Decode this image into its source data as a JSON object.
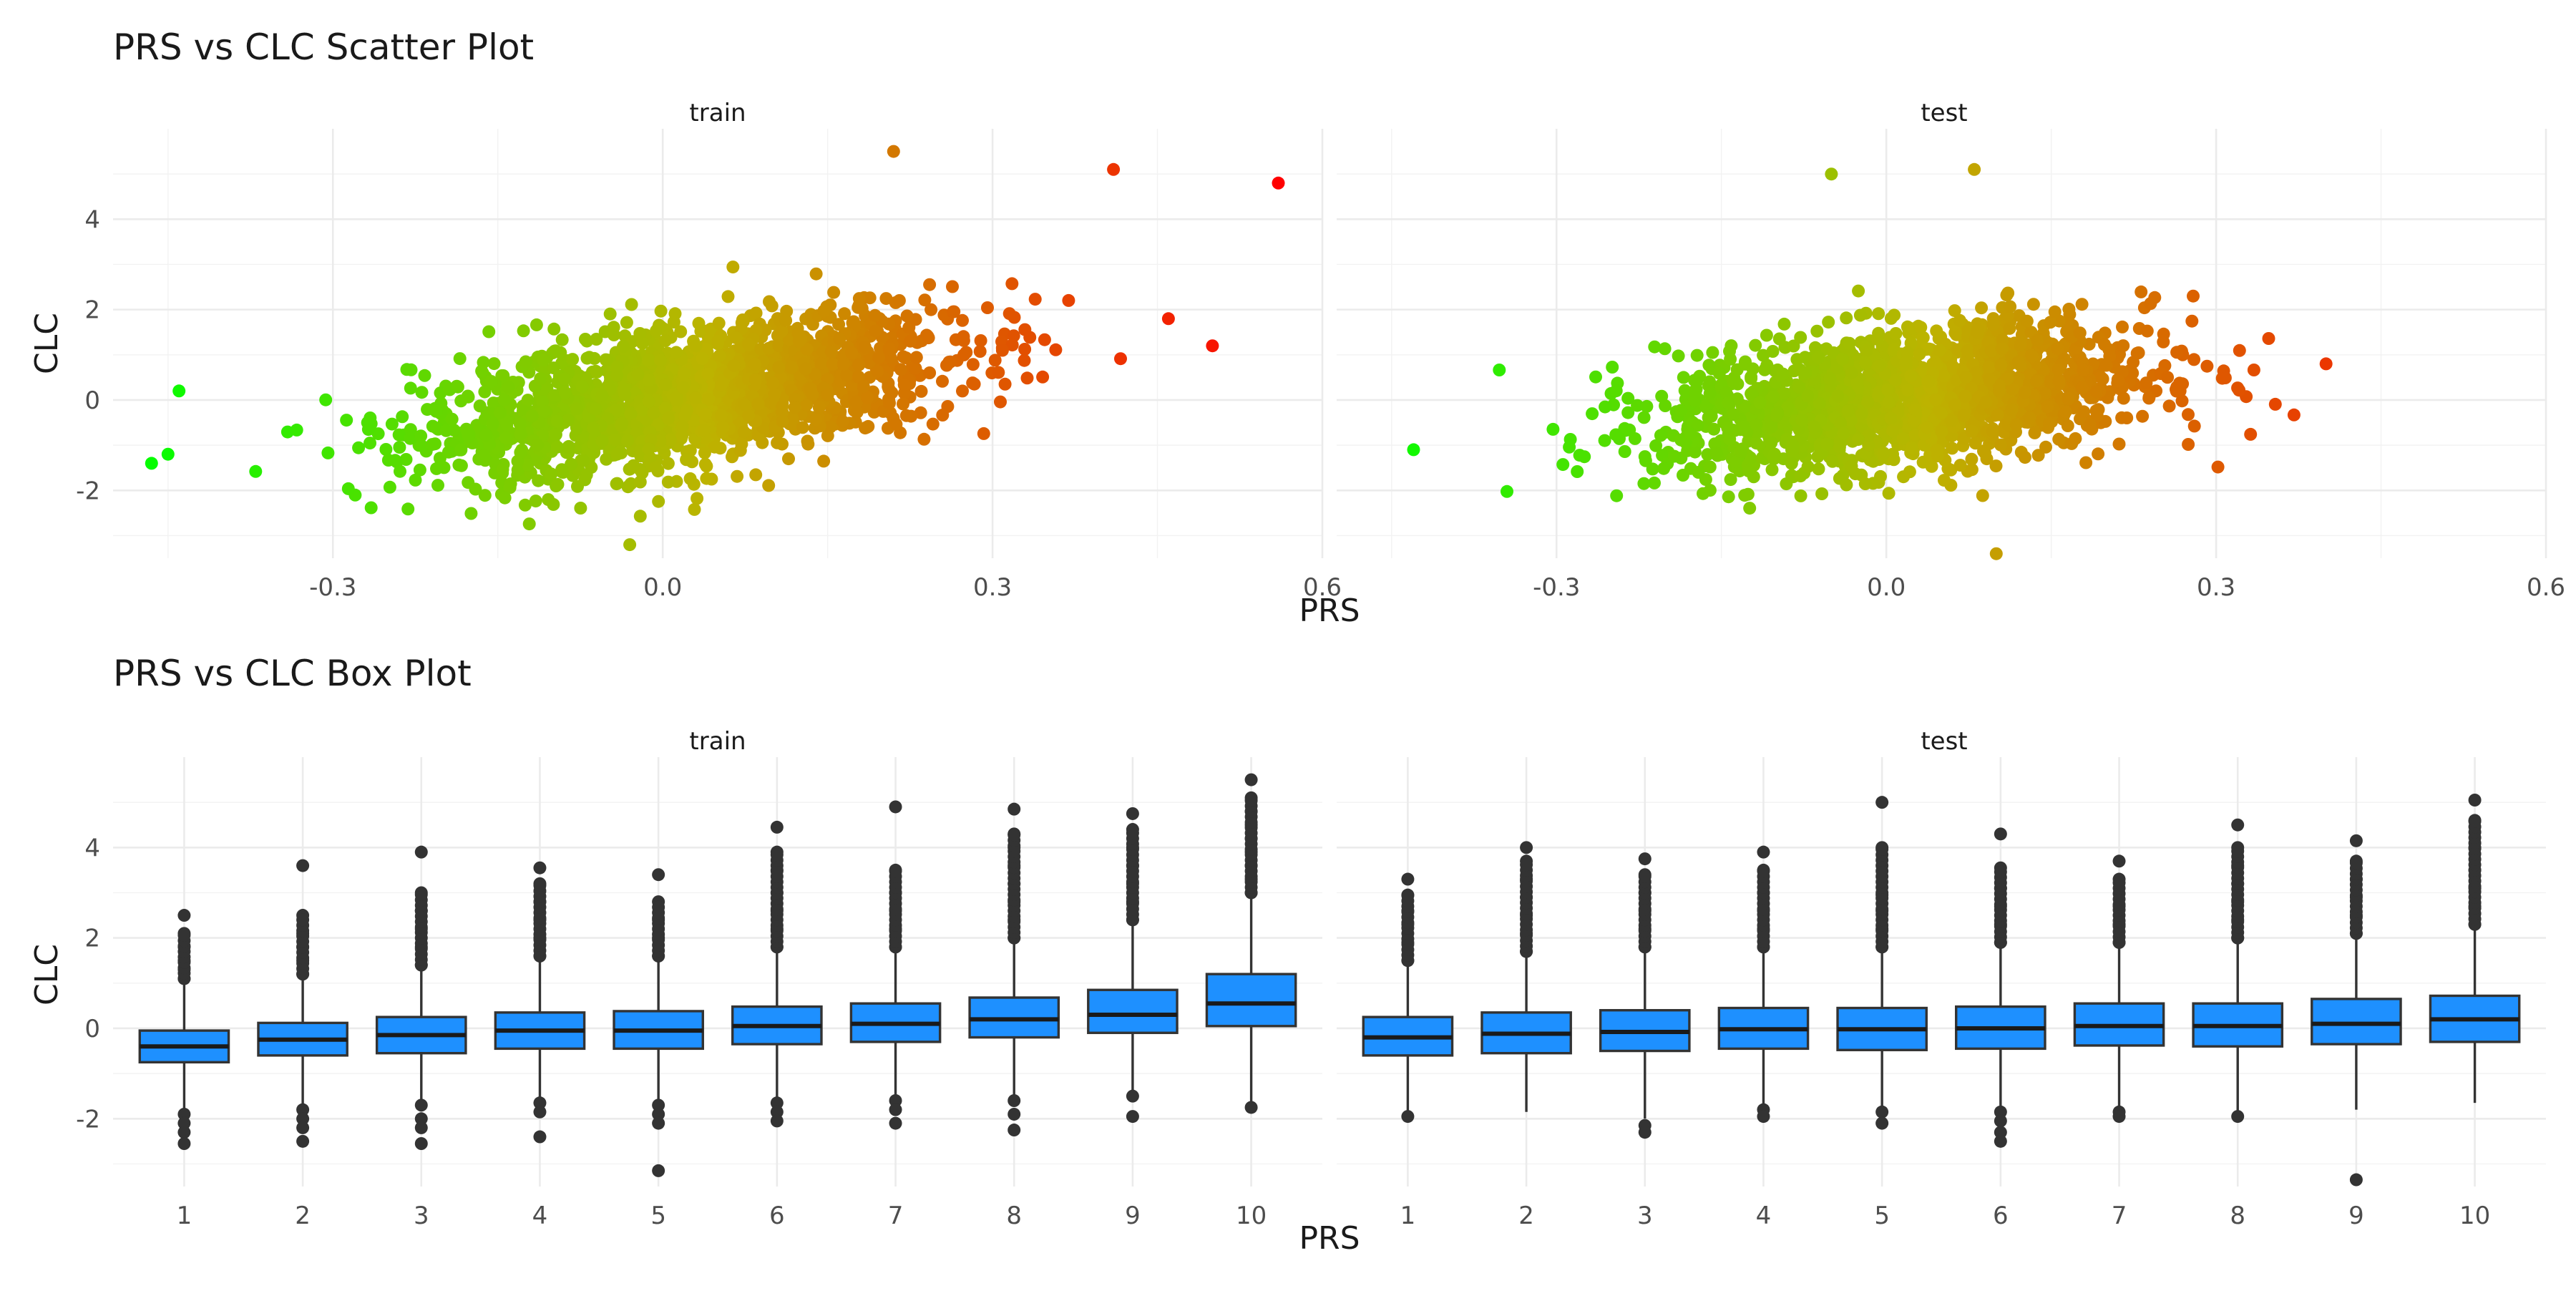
{
  "chart_data": [
    {
      "type": "scatter",
      "title": "PRS vs CLC Scatter Plot",
      "xlabel": "PRS",
      "ylabel": "CLC",
      "facets": [
        "train",
        "test"
      ],
      "xlim": [
        -0.5,
        0.6
      ],
      "ylim": [
        -3.5,
        6
      ],
      "x_ticks": [
        -0.3,
        0.0,
        0.3,
        0.6
      ],
      "x_tick_labels": [
        "-0.3",
        "0.0",
        "0.3",
        "0.6"
      ],
      "y_ticks": [
        -2,
        0,
        2,
        4
      ],
      "y_tick_labels": [
        "-2",
        "0",
        "2",
        "4"
      ],
      "grid": true,
      "color_scale": {
        "low": "#00ff00",
        "mid": "#bdb300",
        "high": "#ff0000",
        "domain": [
          -0.48,
          0.56
        ]
      },
      "relationship": {
        "train": {
          "slope": 4.0,
          "intercept": 0.0
        },
        "test": {
          "slope": 2.6,
          "intercept": 0.0
        }
      },
      "highlighted_points": {
        "train": [
          {
            "x": -0.465,
            "y": -1.4
          },
          {
            "x": -0.45,
            "y": -1.2
          },
          {
            "x": -0.44,
            "y": 0.2
          },
          {
            "x": 0.41,
            "y": 5.1
          },
          {
            "x": 0.46,
            "y": 1.8
          },
          {
            "x": 0.5,
            "y": 1.2
          },
          {
            "x": 0.56,
            "y": 4.8
          },
          {
            "x": -0.03,
            "y": -3.2
          },
          {
            "x": 0.21,
            "y": 5.5
          }
        ],
        "test": [
          {
            "x": -0.43,
            "y": -1.1
          },
          {
            "x": 0.4,
            "y": 0.8
          },
          {
            "x": 0.1,
            "y": -3.4
          },
          {
            "x": 0.08,
            "y": 5.1
          },
          {
            "x": -0.05,
            "y": 5.0
          }
        ]
      }
    },
    {
      "type": "box",
      "title": "PRS vs CLC Box Plot",
      "xlabel": "PRS",
      "ylabel": "CLC",
      "facets": [
        "train",
        "test"
      ],
      "categories": [
        "1",
        "2",
        "3",
        "4",
        "5",
        "6",
        "7",
        "8",
        "9",
        "10"
      ],
      "ylim": [
        -3.5,
        6
      ],
      "y_ticks": [
        -2,
        0,
        2,
        4
      ],
      "y_tick_labels": [
        "-2",
        "0",
        "2",
        "4"
      ],
      "box_color": "#1e90ff",
      "series": [
        {
          "facet": "train",
          "boxes": [
            {
              "q1": -0.75,
              "median": -0.4,
              "q3": -0.05,
              "lo": -1.8,
              "hi": 1.0,
              "out_hi": [
                1.1,
                1.3,
                1.5,
                1.8,
                2.1,
                2.5
              ],
              "out_lo": [
                -1.9,
                -2.1,
                -2.3,
                -2.55
              ]
            },
            {
              "q1": -0.6,
              "median": -0.25,
              "q3": 0.12,
              "lo": -1.7,
              "hi": 1.15,
              "out_hi": [
                1.2,
                1.5,
                1.8,
                2.1,
                2.5,
                3.6
              ],
              "out_lo": [
                -1.8,
                -2.0,
                -2.2,
                -2.5
              ]
            },
            {
              "q1": -0.55,
              "median": -0.15,
              "q3": 0.25,
              "lo": -1.65,
              "hi": 1.35,
              "out_hi": [
                1.4,
                1.8,
                2.2,
                2.6,
                3.0,
                3.9
              ],
              "out_lo": [
                -1.7,
                -2.0,
                -2.2,
                -2.55
              ]
            },
            {
              "q1": -0.45,
              "median": -0.05,
              "q3": 0.35,
              "lo": -1.55,
              "hi": 1.5,
              "out_hi": [
                1.6,
                2.0,
                2.4,
                2.8,
                3.2,
                3.55
              ],
              "out_lo": [
                -1.65,
                -1.85,
                -2.4
              ]
            },
            {
              "q1": -0.45,
              "median": -0.05,
              "q3": 0.38,
              "lo": -1.6,
              "hi": 1.55,
              "out_hi": [
                1.6,
                2.0,
                2.4,
                2.8,
                3.4
              ],
              "out_lo": [
                -1.7,
                -1.9,
                -2.1,
                -3.15
              ]
            },
            {
              "q1": -0.35,
              "median": 0.05,
              "q3": 0.48,
              "lo": -1.55,
              "hi": 1.7,
              "out_hi": [
                1.8,
                2.2,
                2.6,
                3.0,
                3.5,
                3.9,
                4.45
              ],
              "out_lo": [
                -1.65,
                -1.85,
                -2.05
              ]
            },
            {
              "q1": -0.3,
              "median": 0.1,
              "q3": 0.55,
              "lo": -1.5,
              "hi": 1.75,
              "out_hi": [
                1.8,
                2.2,
                2.6,
                3.0,
                3.5,
                4.9
              ],
              "out_lo": [
                -1.6,
                -1.8,
                -2.1
              ]
            },
            {
              "q1": -0.2,
              "median": 0.2,
              "q3": 0.68,
              "lo": -1.5,
              "hi": 1.95,
              "out_hi": [
                2.0,
                2.4,
                2.8,
                3.2,
                3.6,
                4.0,
                4.3,
                4.85
              ],
              "out_lo": [
                -1.6,
                -1.9,
                -2.25
              ]
            },
            {
              "q1": -0.1,
              "median": 0.3,
              "q3": 0.85,
              "lo": -1.45,
              "hi": 2.3,
              "out_hi": [
                2.4,
                2.8,
                3.2,
                3.6,
                4.0,
                4.4,
                4.75
              ],
              "out_lo": [
                -1.5,
                -1.95
              ]
            },
            {
              "q1": 0.05,
              "median": 0.55,
              "q3": 1.2,
              "lo": -1.7,
              "hi": 2.95,
              "out_hi": [
                3.0,
                3.3,
                3.6,
                3.9,
                4.2,
                4.5,
                4.8,
                5.1,
                5.5
              ],
              "out_lo": [
                -1.75
              ]
            }
          ]
        },
        {
          "facet": "test",
          "boxes": [
            {
              "q1": -0.6,
              "median": -0.2,
              "q3": 0.25,
              "lo": -1.9,
              "hi": 1.4,
              "out_hi": [
                1.5,
                1.9,
                2.3,
                2.6,
                2.95,
                3.3
              ],
              "out_lo": [
                -1.95
              ]
            },
            {
              "q1": -0.55,
              "median": -0.12,
              "q3": 0.35,
              "lo": -1.85,
              "hi": 1.65,
              "out_hi": [
                1.7,
                2.1,
                2.5,
                2.9,
                3.3,
                3.7,
                4.0
              ],
              "out_lo": []
            },
            {
              "q1": -0.5,
              "median": -0.08,
              "q3": 0.4,
              "lo": -2.0,
              "hi": 1.7,
              "out_hi": [
                1.8,
                2.2,
                2.6,
                3.0,
                3.4,
                3.75
              ],
              "out_lo": [
                -2.15,
                -2.3
              ]
            },
            {
              "q1": -0.45,
              "median": -0.02,
              "q3": 0.45,
              "lo": -1.75,
              "hi": 1.75,
              "out_hi": [
                1.8,
                2.2,
                2.6,
                3.0,
                3.5,
                3.9
              ],
              "out_lo": [
                -1.8,
                -1.95
              ]
            },
            {
              "q1": -0.48,
              "median": -0.02,
              "q3": 0.45,
              "lo": -1.8,
              "hi": 1.75,
              "out_hi": [
                1.8,
                2.2,
                2.6,
                2.95,
                4.0,
                5.0
              ],
              "out_lo": [
                -1.85,
                -2.1
              ]
            },
            {
              "q1": -0.45,
              "median": 0.0,
              "q3": 0.48,
              "lo": -1.75,
              "hi": 1.8,
              "out_hi": [
                1.9,
                2.3,
                2.7,
                3.1,
                3.55,
                4.3
              ],
              "out_lo": [
                -1.85,
                -2.05,
                -2.3,
                -2.5
              ]
            },
            {
              "q1": -0.38,
              "median": 0.05,
              "q3": 0.55,
              "lo": -1.75,
              "hi": 1.85,
              "out_hi": [
                1.9,
                2.3,
                2.7,
                3.3,
                3.7
              ],
              "out_lo": [
                -1.85,
                -1.95
              ]
            },
            {
              "q1": -0.4,
              "median": 0.05,
              "q3": 0.55,
              "lo": -1.85,
              "hi": 1.9,
              "out_hi": [
                2.0,
                2.4,
                2.8,
                3.2,
                3.6,
                4.0,
                4.5
              ],
              "out_lo": [
                -1.95
              ]
            },
            {
              "q1": -0.35,
              "median": 0.1,
              "q3": 0.65,
              "lo": -1.8,
              "hi": 2.0,
              "out_hi": [
                2.1,
                2.5,
                2.9,
                3.3,
                3.7,
                4.15
              ],
              "out_lo": [
                -3.35
              ]
            },
            {
              "q1": -0.3,
              "median": 0.2,
              "q3": 0.72,
              "lo": -1.65,
              "hi": 2.2,
              "out_hi": [
                2.3,
                2.7,
                3.1,
                3.5,
                4.0,
                4.6,
                5.05
              ],
              "out_lo": []
            }
          ]
        }
      ]
    }
  ]
}
